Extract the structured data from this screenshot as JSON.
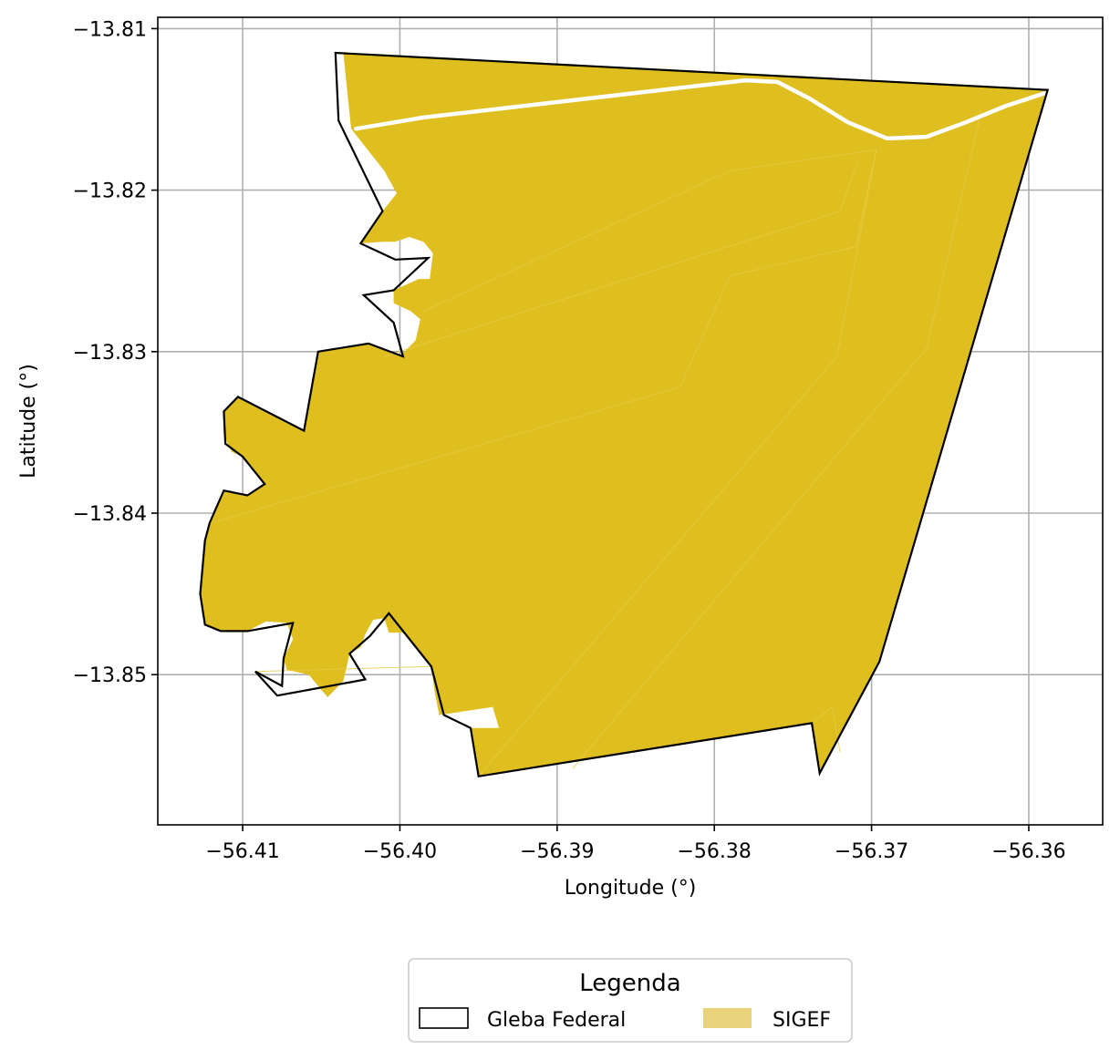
{
  "map": {
    "xlabel": "Longitude (°)",
    "ylabel": "Latitude (°)",
    "x_ticks": [
      {
        "value": -56.41,
        "label": "−56.41"
      },
      {
        "value": -56.4,
        "label": "−56.40"
      },
      {
        "value": -56.39,
        "label": "−56.39"
      },
      {
        "value": -56.38,
        "label": "−56.38"
      },
      {
        "value": -56.37,
        "label": "−56.37"
      },
      {
        "value": -56.36,
        "label": "−56.36"
      }
    ],
    "y_ticks": [
      {
        "value": -13.81,
        "label": "−13.81"
      },
      {
        "value": -13.82,
        "label": "−13.82"
      },
      {
        "value": -13.83,
        "label": "−13.83"
      },
      {
        "value": -13.84,
        "label": "−13.84"
      },
      {
        "value": -13.85,
        "label": "−13.85"
      }
    ],
    "xlim": [
      -56.4154,
      -56.3553
    ],
    "ylim": [
      -13.8593,
      -13.8093
    ],
    "grid": true,
    "legend": {
      "title": "Legenda",
      "placement": "bottom-center",
      "entries": [
        {
          "key": "gleba",
          "label": "Gleba Federal"
        },
        {
          "key": "sigef",
          "label": "SIGEF"
        }
      ]
    },
    "colors": {
      "sigef_fill": "#dfbe1f",
      "sigef_legend": "#e8d27a",
      "gleba_edge": "#000000",
      "road": "#ffffff",
      "grid": "#b0b0b0"
    },
    "layers": {
      "gleba_federal": [
        [
          -56.4041,
          -13.8115
        ],
        [
          -56.3588,
          -13.8138
        ],
        [
          -56.3695,
          -13.8492
        ],
        [
          -56.3733,
          -13.8561
        ],
        [
          -56.3738,
          -13.853
        ],
        [
          -56.395,
          -13.8563
        ],
        [
          -56.3955,
          -13.8533
        ],
        [
          -56.3972,
          -13.8525
        ],
        [
          -56.398,
          -13.8495
        ],
        [
          -56.4007,
          -13.8462
        ],
        [
          -56.4019,
          -13.8476
        ],
        [
          -56.4032,
          -13.8487
        ],
        [
          -56.4022,
          -13.8503
        ],
        [
          -56.4078,
          -13.8513
        ],
        [
          -56.4092,
          -13.8498
        ],
        [
          -56.4075,
          -13.8507
        ],
        [
          -56.4074,
          -13.849
        ],
        [
          -56.4068,
          -13.8468
        ],
        [
          -56.4097,
          -13.8473
        ],
        [
          -56.4114,
          -13.8473
        ],
        [
          -56.4124,
          -13.8469
        ],
        [
          -56.4127,
          -13.845
        ],
        [
          -56.4124,
          -13.8417
        ],
        [
          -56.4121,
          -13.8406
        ],
        [
          -56.4112,
          -13.8386
        ],
        [
          -56.4097,
          -13.8389
        ],
        [
          -56.4086,
          -13.8382
        ],
        [
          -56.41,
          -13.8365
        ],
        [
          -56.4111,
          -13.8357
        ],
        [
          -56.4112,
          -13.8337
        ],
        [
          -56.4103,
          -13.8328
        ],
        [
          -56.4061,
          -13.8349
        ],
        [
          -56.4052,
          -13.83
        ],
        [
          -56.402,
          -13.8295
        ],
        [
          -56.3998,
          -13.8303
        ],
        [
          -56.4004,
          -13.8282
        ],
        [
          -56.4023,
          -13.8265
        ],
        [
          -56.4004,
          -13.8262
        ],
        [
          -56.3982,
          -13.8242
        ],
        [
          -56.4003,
          -13.8243
        ],
        [
          -56.4025,
          -13.8233
        ],
        [
          -56.4011,
          -13.8213
        ],
        [
          -56.4039,
          -13.8157
        ]
      ],
      "sigef": [
        [
          -56.4036,
          -13.8115
        ],
        [
          -56.3588,
          -13.8138
        ],
        [
          -56.3695,
          -13.8492
        ],
        [
          -56.3733,
          -13.8561
        ],
        [
          -56.3738,
          -13.853
        ],
        [
          -56.395,
          -13.8563
        ],
        [
          -56.3955,
          -13.8533
        ],
        [
          -56.3937,
          -13.8533
        ],
        [
          -56.3941,
          -13.852
        ],
        [
          -56.3975,
          -13.8525
        ],
        [
          -56.3978,
          -13.851
        ],
        [
          -56.398,
          -13.8495
        ],
        [
          -56.3997,
          -13.8474
        ],
        [
          -56.4007,
          -13.8474
        ],
        [
          -56.401,
          -13.8465
        ],
        [
          -56.4017,
          -13.8466
        ],
        [
          -56.4022,
          -13.8475
        ],
        [
          -56.4025,
          -13.8483
        ],
        [
          -56.4032,
          -13.8487
        ],
        [
          -56.4036,
          -13.8504
        ],
        [
          -56.4046,
          -13.8514
        ],
        [
          -56.4058,
          -13.85
        ],
        [
          -56.4072,
          -13.8497
        ],
        [
          -56.4074,
          -13.849
        ],
        [
          -56.4068,
          -13.8478
        ],
        [
          -56.4072,
          -13.8468
        ],
        [
          -56.4085,
          -13.8467
        ],
        [
          -56.4097,
          -13.8473
        ],
        [
          -56.4114,
          -13.8473
        ],
        [
          -56.4124,
          -13.8469
        ],
        [
          -56.4127,
          -13.845
        ],
        [
          -56.4124,
          -13.8417
        ],
        [
          -56.4121,
          -13.8406
        ],
        [
          -56.4112,
          -13.8386
        ],
        [
          -56.4097,
          -13.8389
        ],
        [
          -56.4086,
          -13.8382
        ],
        [
          -56.4094,
          -13.8371
        ],
        [
          -56.41,
          -13.8365
        ],
        [
          -56.4107,
          -13.8362
        ],
        [
          -56.4112,
          -13.8352
        ],
        [
          -56.4112,
          -13.8337
        ],
        [
          -56.4103,
          -13.8328
        ],
        [
          -56.4061,
          -13.8349
        ],
        [
          -56.4052,
          -13.83
        ],
        [
          -56.402,
          -13.8295
        ],
        [
          -56.4,
          -13.8303
        ],
        [
          -56.399,
          -13.8293
        ],
        [
          -56.3987,
          -13.828
        ],
        [
          -56.3993,
          -13.8275
        ],
        [
          -56.4004,
          -13.827
        ],
        [
          -56.4004,
          -13.8262
        ],
        [
          -56.3988,
          -13.8255
        ],
        [
          -56.3981,
          -13.8255
        ],
        [
          -56.3979,
          -13.8239
        ],
        [
          -56.3985,
          -13.8232
        ],
        [
          -56.3994,
          -13.8229
        ],
        [
          -56.4003,
          -13.8232
        ],
        [
          -56.4011,
          -13.8232
        ],
        [
          -56.4025,
          -13.8233
        ],
        [
          -56.4011,
          -13.8213
        ],
        [
          -56.4002,
          -13.8202
        ],
        [
          -56.401,
          -13.8188
        ],
        [
          -56.4031,
          -13.8162
        ]
      ],
      "road": [
        [
          -56.4028,
          -13.8162
        ],
        [
          -56.3985,
          -13.8155
        ],
        [
          -56.378,
          -13.8132
        ],
        [
          -56.376,
          -13.8133
        ],
        [
          -56.374,
          -13.8143
        ],
        [
          -56.3715,
          -13.8158
        ],
        [
          -56.369,
          -13.8168
        ],
        [
          -56.3665,
          -13.8167
        ],
        [
          -56.364,
          -13.8158
        ],
        [
          -56.3615,
          -13.8148
        ],
        [
          -56.359,
          -13.814
        ]
      ],
      "parcel_lines": [
        [
          [
            -56.412,
            -13.8406
          ],
          [
            -56.3822,
            -13.8322
          ],
          [
            -56.379,
            -13.8253
          ],
          [
            -56.371,
            -13.8235
          ],
          [
            -56.3697,
            -13.8175
          ]
        ],
        [
          [
            -56.4092,
            -13.8498
          ],
          [
            -56.398,
            -13.8495
          ]
        ],
        [
          [
            -56.401,
            -13.8303
          ],
          [
            -56.372,
            -13.8213
          ],
          [
            -56.3708,
            -13.818
          ]
        ],
        [
          [
            -56.3985,
            -13.8275
          ],
          [
            -56.379,
            -13.8188
          ],
          [
            -56.3697,
            -13.8175
          ]
        ],
        [
          [
            -56.395,
            -13.8563
          ],
          [
            -56.3722,
            -13.8303
          ],
          [
            -56.3697,
            -13.8175
          ]
        ],
        [
          [
            -56.389,
            -13.8558
          ],
          [
            -56.3665,
            -13.8298
          ],
          [
            -56.363,
            -13.815
          ]
        ],
        [
          [
            -56.3738,
            -13.853
          ],
          [
            -56.3725,
            -13.852
          ],
          [
            -56.372,
            -13.8548
          ]
        ]
      ]
    }
  }
}
